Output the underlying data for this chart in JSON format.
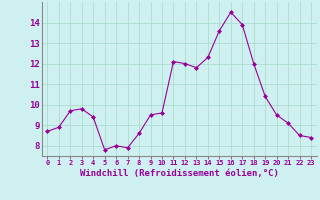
{
  "x": [
    0,
    1,
    2,
    3,
    4,
    5,
    6,
    7,
    8,
    9,
    10,
    11,
    12,
    13,
    14,
    15,
    16,
    17,
    18,
    19,
    20,
    21,
    22,
    23
  ],
  "y": [
    8.7,
    8.9,
    9.7,
    9.8,
    9.4,
    7.8,
    8.0,
    7.9,
    8.6,
    9.5,
    9.6,
    12.1,
    12.0,
    11.8,
    12.3,
    13.6,
    14.5,
    13.9,
    12.0,
    10.4,
    9.5,
    9.1,
    8.5,
    8.4
  ],
  "line_color": "#990099",
  "marker": "D",
  "marker_size": 2.0,
  "bg_color": "#cff0f0",
  "grid_color": "#aaddcc",
  "tick_label_color": "#990099",
  "xlabel": "Windchill (Refroidissement éolien,°C)",
  "xlabel_color": "#990099",
  "ylim": [
    7.5,
    15.0
  ],
  "yticks": [
    8,
    9,
    10,
    11,
    12,
    13,
    14
  ],
  "xticks": [
    0,
    1,
    2,
    3,
    4,
    5,
    6,
    7,
    8,
    9,
    10,
    11,
    12,
    13,
    14,
    15,
    16,
    17,
    18,
    19,
    20,
    21,
    22,
    23
  ]
}
